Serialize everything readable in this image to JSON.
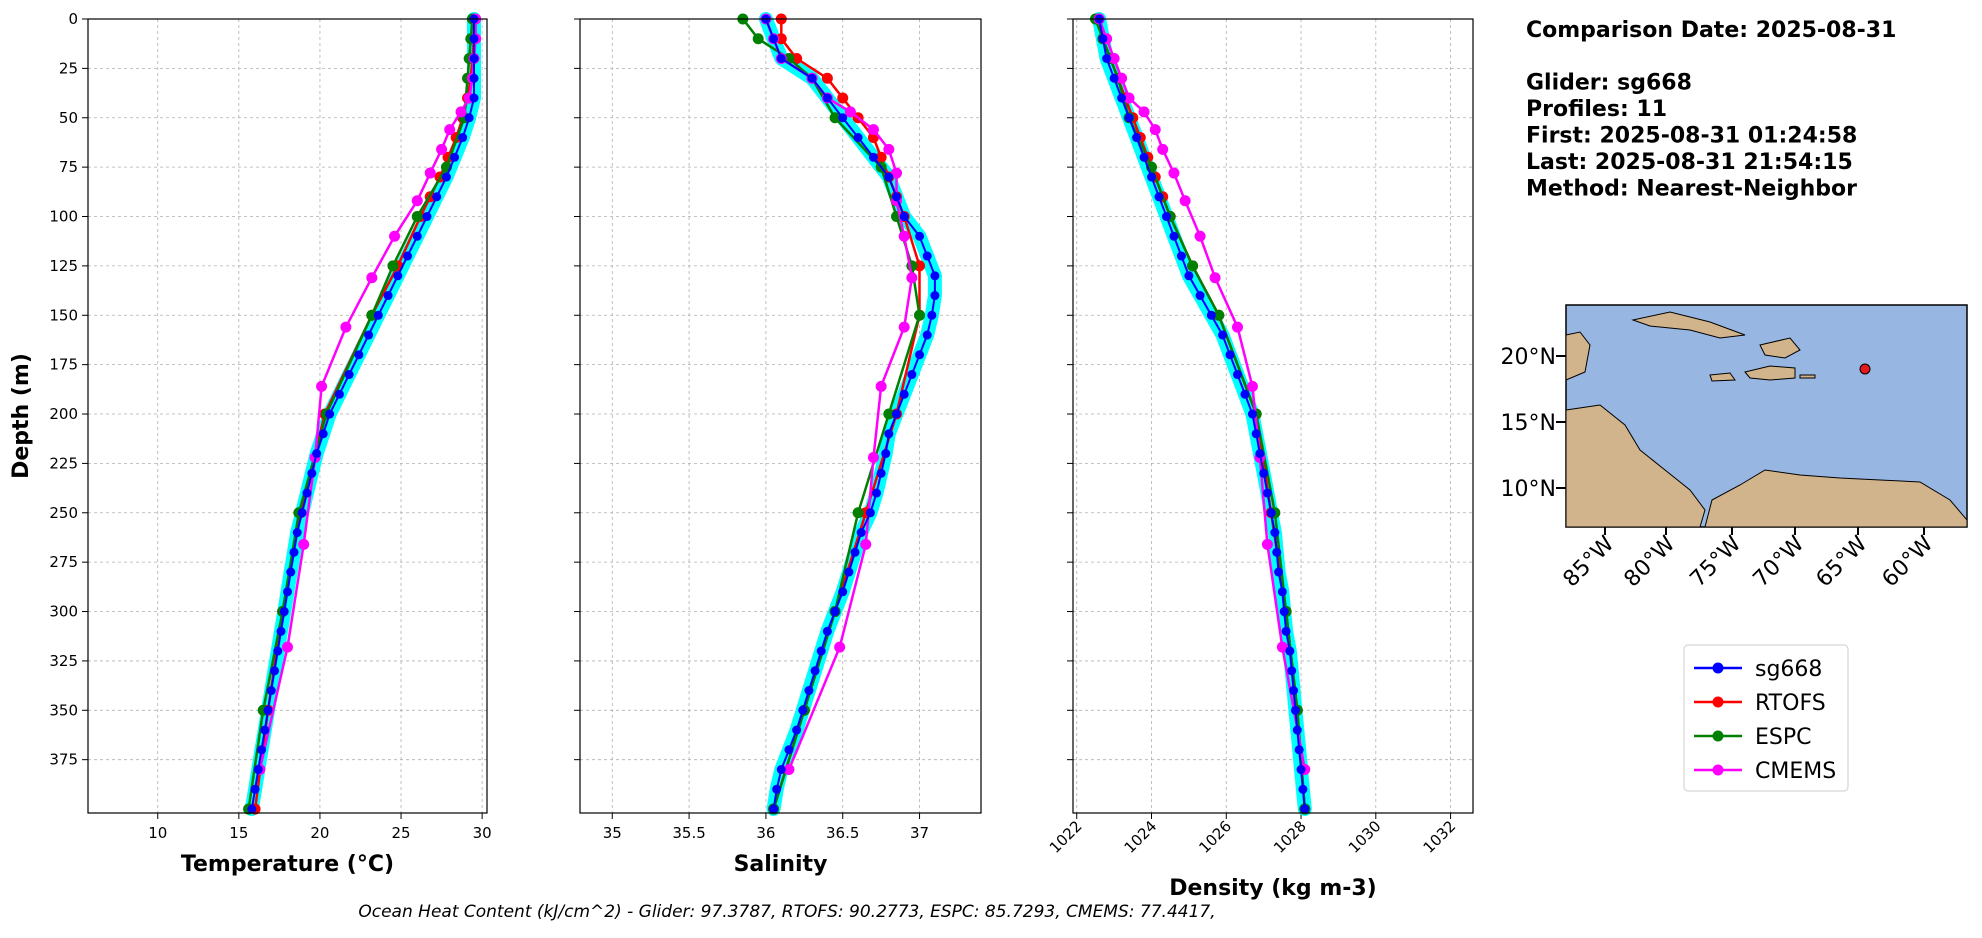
{
  "chart_data": {
    "type": "line",
    "ylabel": "Depth (m)",
    "ylim": [
      0,
      402
    ],
    "invert_y": true,
    "yticks": [
      0,
      25,
      50,
      75,
      100,
      125,
      150,
      175,
      200,
      225,
      250,
      275,
      300,
      325,
      350,
      375
    ],
    "grid": true,
    "panels": [
      {
        "xlabel": "Temperature (°C)",
        "xlim": [
          5.7,
          30.3
        ],
        "xticks": [
          10,
          15,
          20,
          25,
          30
        ]
      },
      {
        "xlabel": "Salinity",
        "xlim": [
          34.79,
          37.4
        ],
        "xticks": [
          35.0,
          35.5,
          36.0,
          36.5,
          37.0
        ]
      },
      {
        "xlabel": "Density (kg m-3)",
        "xlim": [
          1021.9,
          1032.6
        ],
        "xticks": [
          1022,
          1024,
          1026,
          1028,
          1030,
          1032
        ],
        "rotate_xticks": true
      }
    ],
    "series": [
      {
        "name": "sg668",
        "color": "#0000ff",
        "band_color": "#00ffff",
        "depth": [
          0,
          10,
          20,
          30,
          40,
          50,
          60,
          70,
          80,
          90,
          100,
          110,
          120,
          130,
          140,
          150,
          160,
          170,
          180,
          190,
          200,
          210,
          220,
          230,
          240,
          250,
          260,
          270,
          280,
          290,
          300,
          310,
          320,
          330,
          340,
          350,
          360,
          370,
          380,
          390,
          400
        ],
        "x": [
          [
            29.5,
            29.5,
            29.5,
            29.5,
            29.5,
            29.2,
            28.8,
            28.3,
            27.8,
            27.2,
            26.6,
            26.0,
            25.4,
            24.8,
            24.2,
            23.6,
            23.0,
            22.4,
            21.8,
            21.2,
            20.6,
            20.2,
            19.8,
            19.5,
            19.2,
            18.9,
            18.6,
            18.4,
            18.2,
            18.0,
            17.8,
            17.6,
            17.4,
            17.2,
            17.0,
            16.8,
            16.6,
            16.4,
            16.2,
            16.0,
            15.8
          ],
          [
            36.0,
            36.05,
            36.1,
            36.3,
            36.4,
            36.5,
            36.6,
            36.7,
            36.8,
            36.85,
            36.9,
            37.0,
            37.05,
            37.1,
            37.1,
            37.08,
            37.05,
            37.0,
            36.95,
            36.9,
            36.85,
            36.8,
            36.78,
            36.75,
            36.72,
            36.68,
            36.62,
            36.58,
            36.54,
            36.5,
            36.45,
            36.4,
            36.36,
            36.32,
            36.28,
            36.24,
            36.2,
            36.15,
            36.1,
            36.07,
            36.05
          ],
          [
            1022.6,
            1022.7,
            1022.8,
            1023.0,
            1023.2,
            1023.4,
            1023.6,
            1023.8,
            1024.0,
            1024.2,
            1024.4,
            1024.6,
            1024.8,
            1025.0,
            1025.3,
            1025.6,
            1025.9,
            1026.1,
            1026.3,
            1026.5,
            1026.7,
            1026.8,
            1026.9,
            1027.0,
            1027.1,
            1027.2,
            1027.3,
            1027.35,
            1027.4,
            1027.5,
            1027.55,
            1027.6,
            1027.7,
            1027.75,
            1027.8,
            1027.85,
            1027.9,
            1027.95,
            1028.0,
            1028.05,
            1028.1
          ]
        ]
      },
      {
        "name": "RTOFS",
        "color": "#ff0000",
        "depth": [
          0,
          10,
          20,
          30,
          40,
          50,
          60,
          70,
          80,
          90,
          100,
          125,
          150,
          200,
          250,
          300,
          350,
          400
        ],
        "x": [
          [
            29.5,
            29.5,
            29.4,
            29.3,
            29.1,
            28.8,
            28.4,
            27.9,
            27.4,
            26.8,
            26.2,
            24.8,
            23.2,
            20.3,
            18.8,
            17.7,
            16.8,
            16.0
          ],
          [
            36.1,
            36.1,
            36.2,
            36.4,
            36.5,
            36.6,
            36.7,
            36.75,
            36.8,
            36.85,
            36.9,
            37.0,
            37.0,
            36.85,
            36.65,
            36.45,
            36.25,
            36.05
          ],
          [
            1022.6,
            1022.7,
            1022.9,
            1023.1,
            1023.3,
            1023.5,
            1023.7,
            1023.9,
            1024.1,
            1024.3,
            1024.5,
            1025.1,
            1025.8,
            1026.8,
            1027.2,
            1027.6,
            1027.9,
            1028.1
          ]
        ]
      },
      {
        "name": "ESPC",
        "color": "#008000",
        "depth": [
          0,
          10,
          20,
          30,
          50,
          75,
          100,
          125,
          150,
          200,
          250,
          300,
          350,
          400
        ],
        "x": [
          [
            29.4,
            29.3,
            29.2,
            29.1,
            28.9,
            27.8,
            26.0,
            24.5,
            23.2,
            20.4,
            18.7,
            17.7,
            16.5,
            15.6
          ],
          [
            35.85,
            35.95,
            36.15,
            36.3,
            36.45,
            36.75,
            36.85,
            36.95,
            37.0,
            36.8,
            36.6,
            36.45,
            36.25,
            36.05
          ],
          [
            1022.5,
            1022.7,
            1022.9,
            1023.1,
            1023.4,
            1024.0,
            1024.5,
            1025.1,
            1025.8,
            1026.8,
            1027.3,
            1027.6,
            1027.9,
            1028.1
          ]
        ]
      },
      {
        "name": "CMEMS",
        "color": "#ff00ff",
        "depth": [
          0,
          10,
          20,
          30,
          40,
          47,
          56,
          66,
          78,
          92,
          110,
          131,
          156,
          186,
          222,
          266,
          318,
          380
        ],
        "x": [
          [
            29.6,
            29.6,
            29.5,
            29.4,
            29.2,
            28.7,
            28.0,
            27.5,
            26.8,
            26.0,
            24.6,
            23.2,
            21.6,
            20.1,
            19.7,
            19.0,
            18.0,
            16.3
          ],
          [
            36.0,
            36.05,
            36.1,
            36.3,
            36.4,
            36.55,
            36.7,
            36.8,
            36.85,
            36.85,
            36.9,
            36.95,
            36.9,
            36.75,
            36.7,
            36.65,
            36.48,
            36.15
          ],
          [
            1022.6,
            1022.8,
            1023.0,
            1023.2,
            1023.4,
            1023.8,
            1024.1,
            1024.3,
            1024.6,
            1024.9,
            1025.3,
            1025.7,
            1026.3,
            1026.7,
            1026.9,
            1027.1,
            1027.5,
            1028.1
          ]
        ]
      }
    ],
    "info": [
      "Comparison Date: 2025-08-31",
      "Glider: sg668",
      "Profiles: 11",
      "First: 2025-08-31 01:24:58",
      "Last: 2025-08-31 21:54:15",
      "Method: Nearest-Neighbor"
    ],
    "map": {
      "lat_labels": [
        "20°N",
        "15°N",
        "10°N"
      ],
      "lon_labels": [
        "85°W",
        "80°W",
        "75°W",
        "70°W",
        "65°W",
        "60°W"
      ]
    },
    "footer": "Ocean Heat Content (kJ/cm^2) - Glider: 97.3787,  RTOFS: 90.2773,  ESPC: 85.7293,  CMEMS: 77.4417,"
  }
}
